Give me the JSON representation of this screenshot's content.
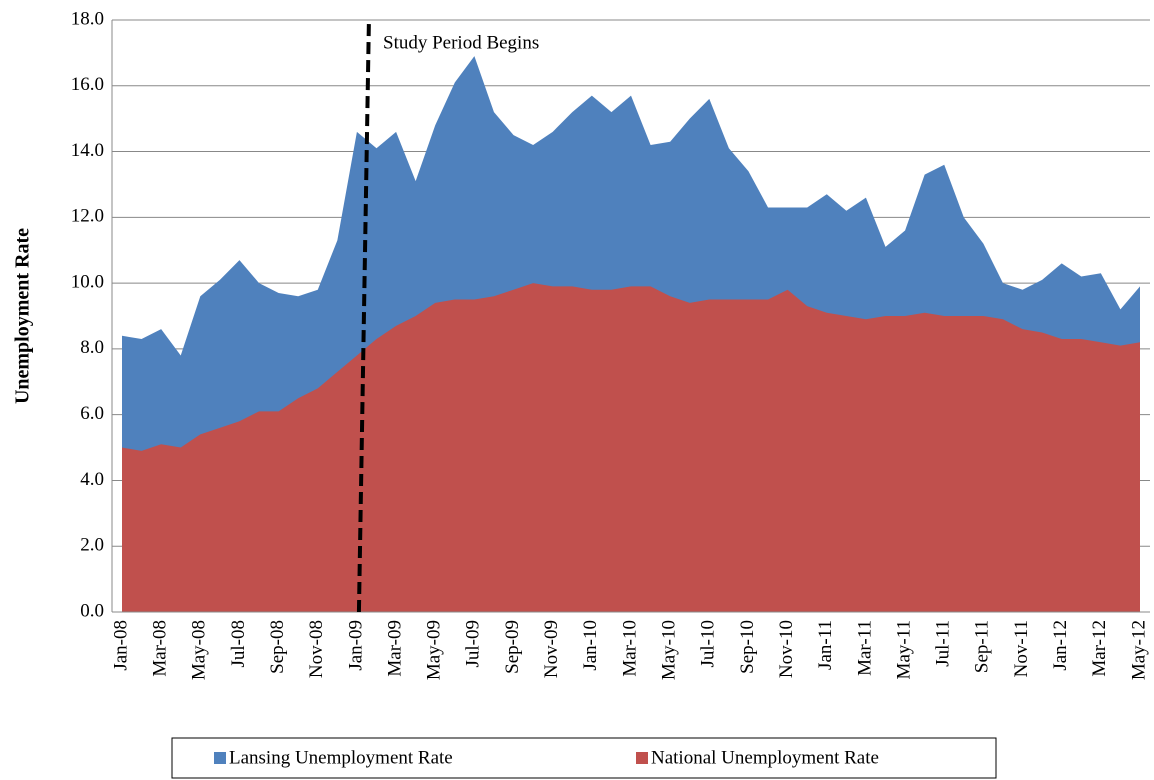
{
  "chart_data": {
    "type": "area",
    "y_label": "Unemployment Rate",
    "annotation": "Study Period Begins",
    "categories": [
      "Jan-08",
      null,
      "Mar-08",
      null,
      "May-08",
      null,
      "Jul-08",
      null,
      "Sep-08",
      null,
      "Nov-08",
      null,
      "Jan-09",
      null,
      "Mar-09",
      null,
      "May-09",
      null,
      "Jul-09",
      null,
      "Sep-09",
      null,
      "Nov-09",
      null,
      "Jan-10",
      null,
      "Mar-10",
      null,
      "May-10",
      null,
      "Jul-10",
      null,
      "Sep-10",
      null,
      "Nov-10",
      null,
      "Jan-11",
      null,
      "Mar-11",
      null,
      "May-11",
      null,
      "Jul-11",
      null,
      "Sep-11",
      null,
      "Nov-11",
      null,
      "Jan-12",
      null,
      "Mar-12",
      null,
      "May-12"
    ],
    "series": [
      {
        "name": "Lansing Unemployment Rate",
        "color": "#4f81bd",
        "values": [
          8.4,
          8.3,
          8.6,
          7.8,
          9.6,
          10.1,
          10.7,
          10.0,
          9.7,
          9.6,
          9.8,
          11.3,
          14.6,
          14.1,
          14.6,
          13.1,
          14.8,
          16.1,
          16.9,
          15.2,
          14.5,
          14.2,
          14.6,
          15.2,
          15.7,
          15.2,
          15.7,
          14.2,
          14.3,
          15.0,
          15.6,
          14.1,
          13.4,
          12.3,
          12.3,
          12.3,
          12.7,
          12.2,
          12.6,
          11.1,
          11.6,
          13.3,
          13.6,
          12.0,
          11.2,
          10.0,
          9.8,
          10.1,
          10.6,
          10.2,
          10.3,
          9.2,
          9.9
        ]
      },
      {
        "name": "National Unemployment Rate",
        "color": "#c0504d",
        "values": [
          5.0,
          4.9,
          5.1,
          5.0,
          5.4,
          5.6,
          5.8,
          6.1,
          6.1,
          6.5,
          6.8,
          7.3,
          7.8,
          8.3,
          8.7,
          9.0,
          9.4,
          9.5,
          9.5,
          9.6,
          9.8,
          10.0,
          9.9,
          9.9,
          9.8,
          9.8,
          9.9,
          9.9,
          9.6,
          9.4,
          9.5,
          9.5,
          9.5,
          9.5,
          9.8,
          9.3,
          9.1,
          9.0,
          8.9,
          9.0,
          9.0,
          9.1,
          9.0,
          9.0,
          9.0,
          8.9,
          8.6,
          8.5,
          8.3,
          8.3,
          8.2,
          8.1,
          8.2
        ]
      }
    ],
    "ylim": [
      0,
      18
    ],
    "yticks": [
      {
        "value": 0,
        "label": "0.0"
      },
      {
        "value": 2,
        "label": "2.0"
      },
      {
        "value": 4,
        "label": "4.0"
      },
      {
        "value": 6,
        "label": "6.0"
      },
      {
        "value": 8,
        "label": "8.0"
      },
      {
        "value": 10,
        "label": "10.0"
      },
      {
        "value": 12,
        "label": "12.0"
      },
      {
        "value": 14,
        "label": "14.0"
      },
      {
        "value": 16,
        "label": "16.0"
      },
      {
        "value": 18,
        "label": "18.0"
      }
    ],
    "grid": true,
    "legend": "bottom"
  }
}
